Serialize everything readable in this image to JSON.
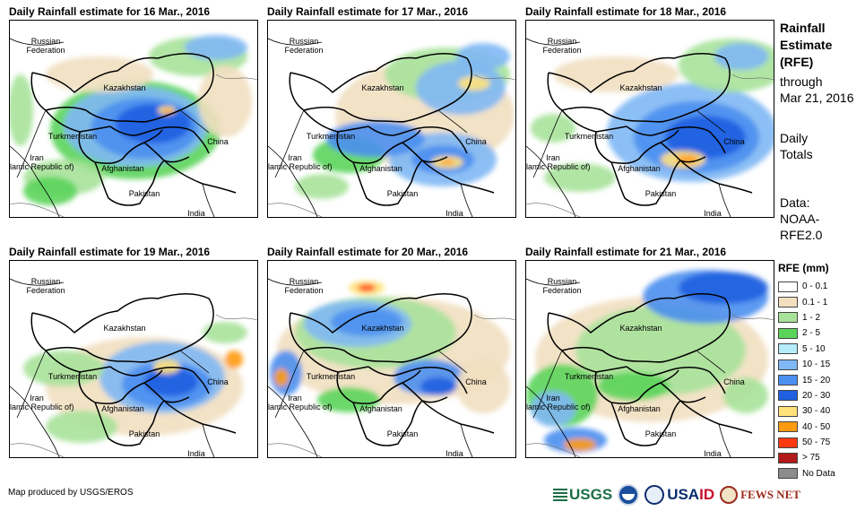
{
  "panels": [
    {
      "title": "Daily Rainfall estimate for 16 Mar., 2016",
      "variant": 0
    },
    {
      "title": "Daily Rainfall estimate for 17 Mar., 2016",
      "variant": 1
    },
    {
      "title": "Daily Rainfall estimate for 18 Mar., 2016",
      "variant": 2
    },
    {
      "title": "Daily Rainfall estimate for 19 Mar., 2016",
      "variant": 3
    },
    {
      "title": "Daily Rainfall estimate for 20 Mar., 2016",
      "variant": 4
    },
    {
      "title": "Daily Rainfall estimate for 21 Mar., 2016",
      "variant": 5
    }
  ],
  "map_labels": {
    "russia": "Russian\nFederation",
    "kazakhstan": "Kazakhstan",
    "turkmenistan": "Turkmenistan",
    "iran": "Iran\n(Islamic Republic of)",
    "afghanistan": "Afghanistan",
    "pakistan": "Pakistan",
    "china": "China",
    "india": "India"
  },
  "side": {
    "title1": "Rainfall",
    "title2": "Estimate",
    "title3": "(RFE)",
    "through": "through",
    "date": "Mar 21, 2016",
    "daily": "Daily",
    "totals": "Totals",
    "data_label": "Data:",
    "source1": "NOAA-",
    "source2": "RFE2.0"
  },
  "legend": {
    "title": "RFE (mm)",
    "items": [
      {
        "label": "0 - 0.1",
        "color": "#ffffff"
      },
      {
        "label": "0.1 - 1",
        "color": "#f1dfc0"
      },
      {
        "label": "1 - 2",
        "color": "#a7e29a"
      },
      {
        "label": "2 - 5",
        "color": "#5bd45b"
      },
      {
        "label": "5 - 10",
        "color": "#b5ecfa"
      },
      {
        "label": "10 - 15",
        "color": "#7fb8f4"
      },
      {
        "label": "15 - 20",
        "color": "#4b8ff0"
      },
      {
        "label": "20 - 30",
        "color": "#1f5fe0"
      },
      {
        "label": "30 - 40",
        "color": "#ffe27a"
      },
      {
        "label": "40 - 50",
        "color": "#ff9b10"
      },
      {
        "label": "50 - 75",
        "color": "#ff3a10"
      },
      {
        "label": "> 75",
        "color": "#b31a1a"
      },
      {
        "label": "No Data",
        "color": "#8c8c8c"
      }
    ]
  },
  "credit": "Map produced by USGS/EROS",
  "logos": {
    "usgs": "USGS",
    "usaid_usa": "USA",
    "usaid_aid": "ID",
    "fews": "FEWS NET"
  }
}
